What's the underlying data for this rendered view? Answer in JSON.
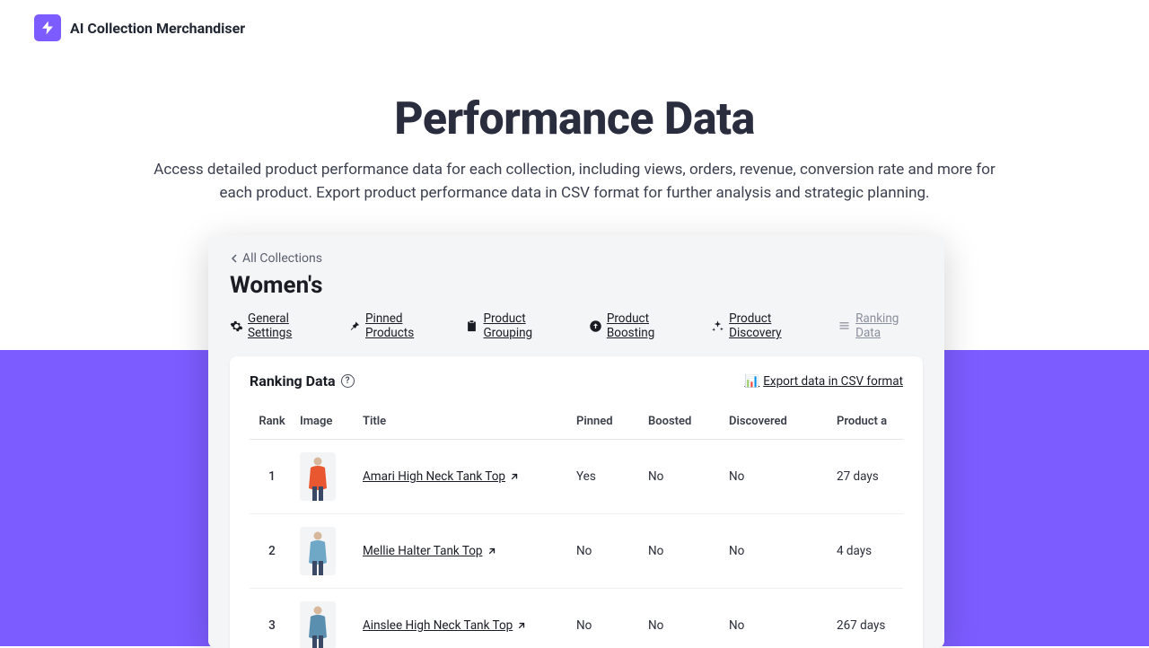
{
  "brand": {
    "name": "AI Collection Merchandiser"
  },
  "hero": {
    "title": "Performance Data",
    "subtitle": "Access detailed product performance data for each collection, including views, orders, revenue, conversion rate and more for each product. Export product performance data in CSV format for further analysis and strategic planning."
  },
  "colors": {
    "accent": "#7c5cff",
    "heading": "#2a2d3e",
    "body": "#3b3f4e",
    "panel_bg": "#f4f5f7"
  },
  "screenshot": {
    "breadcrumb": "All Collections",
    "page_title": "Women's",
    "tabs": [
      {
        "label": "General Settings"
      },
      {
        "label": "Pinned Products"
      },
      {
        "label": "Product Grouping"
      },
      {
        "label": "Product Boosting"
      },
      {
        "label": "Product Discovery"
      },
      {
        "label": "Ranking Data"
      }
    ],
    "active_tab": "Ranking Data",
    "panel_title": "Ranking Data",
    "export_label": "Export data in CSV format",
    "columns": [
      "Rank",
      "Image",
      "Title",
      "Pinned",
      "Boosted",
      "Discovered",
      "Product a"
    ],
    "rows": [
      {
        "rank": 1,
        "title": "Amari High Neck Tank Top",
        "pinned": "Yes",
        "boosted": "No",
        "discovered": "No",
        "age": "27 days",
        "img_color": "#e8572f"
      },
      {
        "rank": 2,
        "title": "Mellie Halter Tank Top",
        "pinned": "No",
        "boosted": "No",
        "discovered": "No",
        "age": "4 days",
        "img_color": "#6fa8c7"
      },
      {
        "rank": 3,
        "title": "Ainslee High Neck Tank Top",
        "pinned": "No",
        "boosted": "No",
        "discovered": "No",
        "age": "267 days",
        "img_color": "#5b8fb0"
      }
    ]
  }
}
